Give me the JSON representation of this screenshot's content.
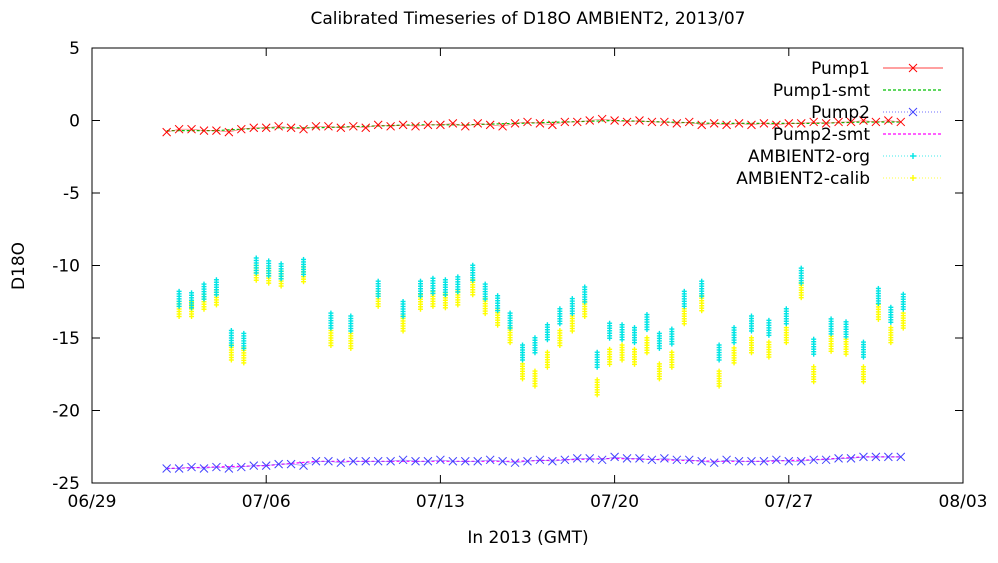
{
  "chart_data": {
    "type": "scatter",
    "title": "Calibrated Timeseries of D18O AMBIENT2, 2013/07",
    "xlabel": "In 2013 (GMT)",
    "ylabel": "D18O",
    "xlim": [
      "2013-06-29",
      "2013-08-03"
    ],
    "ylim": [
      -25,
      5
    ],
    "xticks": [
      "06/29",
      "07/06",
      "07/13",
      "07/20",
      "07/27",
      "08/03"
    ],
    "yticks": [
      "5",
      "0",
      "-5",
      "-10",
      "-15",
      "-20",
      "-25"
    ],
    "grid": false,
    "legend_position": "top-right",
    "series": [
      {
        "name": "Pump1",
        "color": "#ff0000",
        "style": "points-x",
        "x": [
          "2013-07-02",
          "2013-07-02.5",
          "2013-07-03",
          "2013-07-03.5",
          "2013-07-04",
          "2013-07-04.5",
          "2013-07-05",
          "2013-07-05.5",
          "2013-07-06",
          "2013-07-06.5",
          "2013-07-07",
          "2013-07-07.5",
          "2013-07-08",
          "2013-07-08.5",
          "2013-07-09",
          "2013-07-09.5",
          "2013-07-10",
          "2013-07-10.5",
          "2013-07-11",
          "2013-07-11.5",
          "2013-07-12",
          "2013-07-12.5",
          "2013-07-13",
          "2013-07-13.5",
          "2013-07-14",
          "2013-07-14.5",
          "2013-07-15",
          "2013-07-15.5",
          "2013-07-16",
          "2013-07-16.5",
          "2013-07-17",
          "2013-07-17.5",
          "2013-07-18",
          "2013-07-18.5",
          "2013-07-19",
          "2013-07-19.5",
          "2013-07-20",
          "2013-07-20.5",
          "2013-07-21",
          "2013-07-21.5",
          "2013-07-22",
          "2013-07-22.5",
          "2013-07-23",
          "2013-07-23.5",
          "2013-07-24",
          "2013-07-24.5",
          "2013-07-25",
          "2013-07-25.5",
          "2013-07-26",
          "2013-07-26.5",
          "2013-07-27",
          "2013-07-27.5",
          "2013-07-28",
          "2013-07-28.5",
          "2013-07-29",
          "2013-07-29.5",
          "2013-07-30",
          "2013-07-30.5",
          "2013-07-31",
          "2013-07-31.5"
        ],
        "y": [
          -0.8,
          -0.6,
          -0.6,
          -0.7,
          -0.7,
          -0.8,
          -0.6,
          -0.5,
          -0.5,
          -0.4,
          -0.5,
          -0.6,
          -0.4,
          -0.4,
          -0.5,
          -0.4,
          -0.5,
          -0.3,
          -0.4,
          -0.3,
          -0.4,
          -0.3,
          -0.3,
          -0.2,
          -0.4,
          -0.2,
          -0.3,
          -0.4,
          -0.2,
          -0.1,
          -0.2,
          -0.3,
          -0.1,
          -0.1,
          0.0,
          0.1,
          0.0,
          -0.1,
          0.0,
          -0.1,
          -0.1,
          -0.2,
          -0.1,
          -0.3,
          -0.2,
          -0.3,
          -0.2,
          -0.3,
          -0.2,
          -0.3,
          -0.2,
          -0.2,
          -0.1,
          -0.2,
          -0.1,
          -0.1,
          0.0,
          -0.1,
          0.0,
          -0.1
        ]
      },
      {
        "name": "Pump1-smt",
        "color": "#00c000",
        "style": "line-dashed",
        "x": [
          "2013-07-02",
          "2013-07-04",
          "2013-07-06",
          "2013-07-08",
          "2013-07-10",
          "2013-07-12",
          "2013-07-14",
          "2013-07-16",
          "2013-07-18",
          "2013-07-20",
          "2013-07-22",
          "2013-07-24",
          "2013-07-26",
          "2013-07-28",
          "2013-07-30",
          "2013-07-31.5"
        ],
        "y": [
          -0.7,
          -0.7,
          -0.5,
          -0.5,
          -0.4,
          -0.3,
          -0.3,
          -0.2,
          -0.1,
          0.0,
          -0.1,
          -0.2,
          -0.2,
          -0.2,
          -0.1,
          -0.1
        ]
      },
      {
        "name": "Pump2",
        "color": "#4040ff",
        "style": "points-x",
        "x": [
          "2013-07-02",
          "2013-07-02.5",
          "2013-07-03",
          "2013-07-03.5",
          "2013-07-04",
          "2013-07-04.5",
          "2013-07-05",
          "2013-07-05.5",
          "2013-07-06",
          "2013-07-06.5",
          "2013-07-07",
          "2013-07-07.5",
          "2013-07-08",
          "2013-07-08.5",
          "2013-07-09",
          "2013-07-09.5",
          "2013-07-10",
          "2013-07-10.5",
          "2013-07-11",
          "2013-07-11.5",
          "2013-07-12",
          "2013-07-12.5",
          "2013-07-13",
          "2013-07-13.5",
          "2013-07-14",
          "2013-07-14.5",
          "2013-07-15",
          "2013-07-15.5",
          "2013-07-16",
          "2013-07-16.5",
          "2013-07-17",
          "2013-07-17.5",
          "2013-07-18",
          "2013-07-18.5",
          "2013-07-19",
          "2013-07-19.5",
          "2013-07-20",
          "2013-07-20.5",
          "2013-07-21",
          "2013-07-21.5",
          "2013-07-22",
          "2013-07-22.5",
          "2013-07-23",
          "2013-07-23.5",
          "2013-07-24",
          "2013-07-24.5",
          "2013-07-25",
          "2013-07-25.5",
          "2013-07-26",
          "2013-07-26.5",
          "2013-07-27",
          "2013-07-27.5",
          "2013-07-28",
          "2013-07-28.5",
          "2013-07-29",
          "2013-07-29.5",
          "2013-07-30",
          "2013-07-30.5",
          "2013-07-31",
          "2013-07-31.5"
        ],
        "y": [
          -24.0,
          -24.0,
          -23.9,
          -24.0,
          -23.9,
          -24.0,
          -23.9,
          -23.8,
          -23.8,
          -23.7,
          -23.7,
          -23.8,
          -23.5,
          -23.5,
          -23.6,
          -23.5,
          -23.5,
          -23.5,
          -23.5,
          -23.4,
          -23.5,
          -23.5,
          -23.4,
          -23.5,
          -23.5,
          -23.5,
          -23.4,
          -23.5,
          -23.6,
          -23.5,
          -23.4,
          -23.5,
          -23.4,
          -23.3,
          -23.3,
          -23.4,
          -23.2,
          -23.3,
          -23.3,
          -23.4,
          -23.3,
          -23.4,
          -23.4,
          -23.5,
          -23.6,
          -23.4,
          -23.5,
          -23.5,
          -23.5,
          -23.4,
          -23.5,
          -23.5,
          -23.4,
          -23.4,
          -23.3,
          -23.3,
          -23.2,
          -23.2,
          -23.2,
          -23.2
        ]
      },
      {
        "name": "Pump2-smt",
        "color": "#ff00ff",
        "style": "line-dashed",
        "x": [
          "2013-07-02",
          "2013-07-04",
          "2013-07-06",
          "2013-07-08",
          "2013-07-10",
          "2013-07-12",
          "2013-07-14",
          "2013-07-16",
          "2013-07-18",
          "2013-07-20",
          "2013-07-22",
          "2013-07-24",
          "2013-07-26",
          "2013-07-28",
          "2013-07-30",
          "2013-07-31.5"
        ],
        "y": [
          -24.0,
          -23.9,
          -23.8,
          -23.5,
          -23.5,
          -23.5,
          -23.5,
          -23.5,
          -23.4,
          -23.3,
          -23.4,
          -23.5,
          -23.5,
          -23.4,
          -23.2,
          -23.2
        ]
      },
      {
        "name": "AMBIENT2-org",
        "color": "#00e5e5",
        "style": "points-star",
        "x": [
          "2013-07-02.5",
          "2013-07-03.0",
          "2013-07-03.5",
          "2013-07-04.0",
          "2013-07-04.6",
          "2013-07-05.1",
          "2013-07-05.6",
          "2013-07-06.1",
          "2013-07-06.6",
          "2013-07-07.5",
          "2013-07-08.6",
          "2013-07-09.4",
          "2013-07-10.5",
          "2013-07-11.5",
          "2013-07-12.2",
          "2013-07-12.7",
          "2013-07-13.2",
          "2013-07-13.7",
          "2013-07-14.3",
          "2013-07-14.8",
          "2013-07-15.3",
          "2013-07-15.8",
          "2013-07-16.3",
          "2013-07-16.8",
          "2013-07-17.3",
          "2013-07-17.8",
          "2013-07-18.3",
          "2013-07-18.8",
          "2013-07-19.3",
          "2013-07-19.8",
          "2013-07-20.3",
          "2013-07-20.8",
          "2013-07-21.3",
          "2013-07-21.8",
          "2013-07-22.3",
          "2013-07-22.8",
          "2013-07-23.5",
          "2013-07-24.2",
          "2013-07-24.8",
          "2013-07-25.5",
          "2013-07-26.2",
          "2013-07-26.9",
          "2013-07-27.5",
          "2013-07-28.0",
          "2013-07-28.7",
          "2013-07-29.3",
          "2013-07-30.0",
          "2013-07-30.6",
          "2013-07-31.1",
          "2013-07-31.6"
        ],
        "y": [
          -12.3,
          -12.4,
          -11.8,
          -11.5,
          -15.0,
          -15.2,
          -10.0,
          -10.2,
          -10.4,
          -10.1,
          -13.8,
          -14.0,
          -11.6,
          -13.0,
          -11.6,
          -11.4,
          -11.5,
          -11.3,
          -10.5,
          -11.8,
          -12.6,
          -13.8,
          -16.0,
          -15.5,
          -14.6,
          -13.5,
          -12.8,
          -12.0,
          -16.5,
          -14.5,
          -14.6,
          -14.8,
          -13.9,
          -15.2,
          -14.9,
          -12.3,
          -11.6,
          -16.0,
          -14.8,
          -14.0,
          -14.3,
          -13.5,
          -10.7,
          -15.6,
          -14.2,
          -14.4,
          -15.8,
          -12.1,
          -13.4,
          -12.5
        ]
      },
      {
        "name": "AMBIENT2-calib",
        "color": "#ffff00",
        "style": "points-star",
        "x": [
          "2013-07-02.5",
          "2013-07-03.0",
          "2013-07-03.5",
          "2013-07-04.0",
          "2013-07-04.6",
          "2013-07-05.1",
          "2013-07-05.6",
          "2013-07-06.1",
          "2013-07-06.6",
          "2013-07-07.5",
          "2013-07-08.6",
          "2013-07-09.4",
          "2013-07-10.5",
          "2013-07-11.5",
          "2013-07-12.2",
          "2013-07-12.7",
          "2013-07-13.2",
          "2013-07-13.7",
          "2013-07-14.3",
          "2013-07-14.8",
          "2013-07-15.3",
          "2013-07-15.8",
          "2013-07-16.3",
          "2013-07-16.8",
          "2013-07-17.3",
          "2013-07-17.8",
          "2013-07-18.3",
          "2013-07-18.8",
          "2013-07-19.3",
          "2013-07-19.8",
          "2013-07-20.3",
          "2013-07-20.8",
          "2013-07-21.3",
          "2013-07-21.8",
          "2013-07-22.3",
          "2013-07-22.8",
          "2013-07-23.5",
          "2013-07-24.2",
          "2013-07-24.8",
          "2013-07-25.5",
          "2013-07-26.2",
          "2013-07-26.9",
          "2013-07-27.5",
          "2013-07-28.0",
          "2013-07-28.7",
          "2013-07-29.3",
          "2013-07-30.0",
          "2013-07-30.6",
          "2013-07-31.1",
          "2013-07-31.6"
        ],
        "y": [
          -13.0,
          -13.0,
          -12.5,
          -12.2,
          -16.0,
          -16.2,
          -10.5,
          -10.7,
          -10.9,
          -10.6,
          -15.0,
          -15.2,
          -12.3,
          -14.0,
          -12.5,
          -12.3,
          -12.4,
          -12.2,
          -11.5,
          -12.8,
          -13.6,
          -14.8,
          -17.3,
          -17.8,
          -16.5,
          -15.0,
          -14.0,
          -13.0,
          -18.4,
          -16.3,
          -16.0,
          -16.3,
          -15.5,
          -17.3,
          -16.5,
          -13.5,
          -12.6,
          -17.8,
          -16.2,
          -15.5,
          -15.8,
          -14.8,
          -11.7,
          -17.5,
          -15.4,
          -15.6,
          -17.5,
          -13.2,
          -14.8,
          -13.8
        ]
      }
    ]
  }
}
